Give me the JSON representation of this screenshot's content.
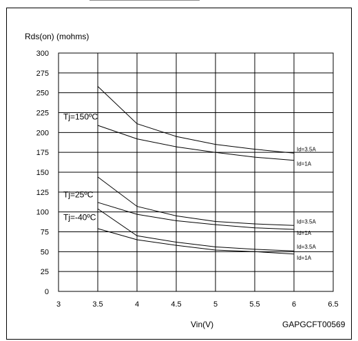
{
  "chart_data": {
    "type": "line",
    "title": "",
    "xlabel": "Vin(V)",
    "ylabel": "Rds(on) (mohms)",
    "source_code": "GAPGCFT00569",
    "xlim": [
      3,
      6.5
    ],
    "ylim": [
      0,
      300
    ],
    "x_ticks": [
      3,
      3.5,
      4,
      4.5,
      5,
      5.5,
      6,
      6.5
    ],
    "x_tick_labels": [
      "3",
      "3.5",
      "4",
      "4.5",
      "5",
      "5.5",
      "6",
      "6.5"
    ],
    "y_ticks": [
      0,
      25,
      50,
      75,
      100,
      125,
      150,
      175,
      200,
      225,
      250,
      275,
      300
    ],
    "y_tick_labels": [
      "0",
      "25",
      "50",
      "75",
      "100",
      "125",
      "150",
      "175",
      "200",
      "225",
      "250",
      "275",
      "300"
    ],
    "grid": true,
    "groups": [
      {
        "label": "Tj=150ºC",
        "label_y": 220
      },
      {
        "label": "Tj=25ºC",
        "label_y": 122
      },
      {
        "label": "Tj=-40ºC",
        "label_y": 93
      }
    ],
    "series": [
      {
        "group": "Tj=150ºC",
        "name": "Id=3.5A",
        "x": [
          3.5,
          4,
          4.5,
          5,
          5.5,
          6
        ],
        "values": [
          258,
          211,
          195,
          185,
          179,
          174
        ]
      },
      {
        "group": "Tj=150ºC",
        "name": "Id=1A",
        "x": [
          3.5,
          4,
          4.5,
          5,
          5.5,
          6
        ],
        "values": [
          209,
          192,
          182,
          175,
          169,
          165
        ]
      },
      {
        "group": "Tj=25ºC",
        "name": "Id=3.5A",
        "x": [
          3.5,
          4,
          4.5,
          5,
          5.5,
          6
        ],
        "values": [
          144,
          107,
          95,
          88,
          85,
          83
        ]
      },
      {
        "group": "Tj=25ºC",
        "name": "Id=1A",
        "x": [
          3.5,
          4,
          4.5,
          5,
          5.5,
          6
        ],
        "values": [
          112,
          97,
          89,
          84,
          80,
          78
        ]
      },
      {
        "group": "Tj=-40ºC",
        "name": "Id=3.5A",
        "x": [
          3.5,
          4,
          4.5,
          5,
          5.5,
          6
        ],
        "values": [
          104,
          70,
          62,
          56,
          53,
          51
        ]
      },
      {
        "group": "Tj=-40ºC",
        "name": "Id=1A",
        "x": [
          3.5,
          4,
          4.5,
          5,
          5.5,
          6
        ],
        "values": [
          79,
          65,
          58,
          52,
          50,
          47
        ]
      }
    ]
  }
}
